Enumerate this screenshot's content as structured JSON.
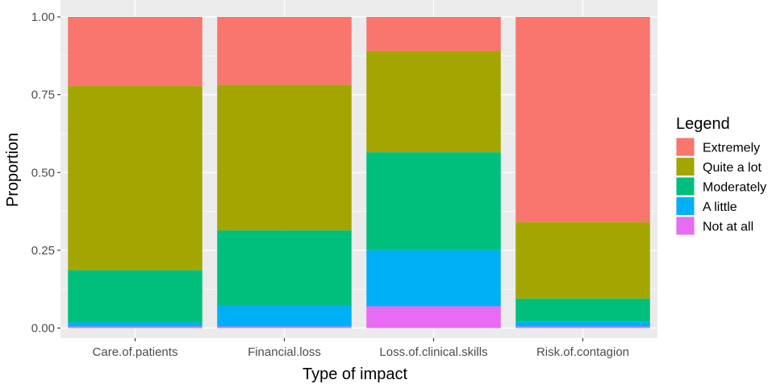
{
  "chart_data": {
    "type": "bar",
    "stacked": true,
    "title": "",
    "xlabel": "Type of impact",
    "ylabel": "Proportion",
    "ylim": [
      0,
      1
    ],
    "yticks": [
      "0.00",
      "0.25",
      "0.50",
      "0.75",
      "1.00"
    ],
    "ytick_values": [
      0,
      0.25,
      0.5,
      0.75,
      1.0
    ],
    "categories": [
      "Care.of.patients",
      "Financial.loss",
      "Loss.of.clinical.skills",
      "Risk.of.contagion"
    ],
    "legend_title": "Legend",
    "legend_position": "right",
    "series": [
      {
        "name": "Extremely",
        "color": "#F8766D",
        "values": [
          0.222,
          0.218,
          0.11,
          0.66
        ]
      },
      {
        "name": "Quite a lot",
        "color": "#A3A500",
        "values": [
          0.592,
          0.468,
          0.325,
          0.245
        ]
      },
      {
        "name": "Moderately",
        "color": "#00BF7D",
        "values": [
          0.168,
          0.243,
          0.315,
          0.075
        ]
      },
      {
        "name": "A little",
        "color": "#00B0F6",
        "values": [
          0.013,
          0.066,
          0.18,
          0.015
        ]
      },
      {
        "name": "Not at all",
        "color": "#E76BF3",
        "values": [
          0.005,
          0.005,
          0.07,
          0.005
        ]
      }
    ],
    "stack_order": [
      "Not at all",
      "A little",
      "Moderately",
      "Quite a lot",
      "Extremely"
    ],
    "panel_background": "#EBEBEB",
    "grid": true
  }
}
